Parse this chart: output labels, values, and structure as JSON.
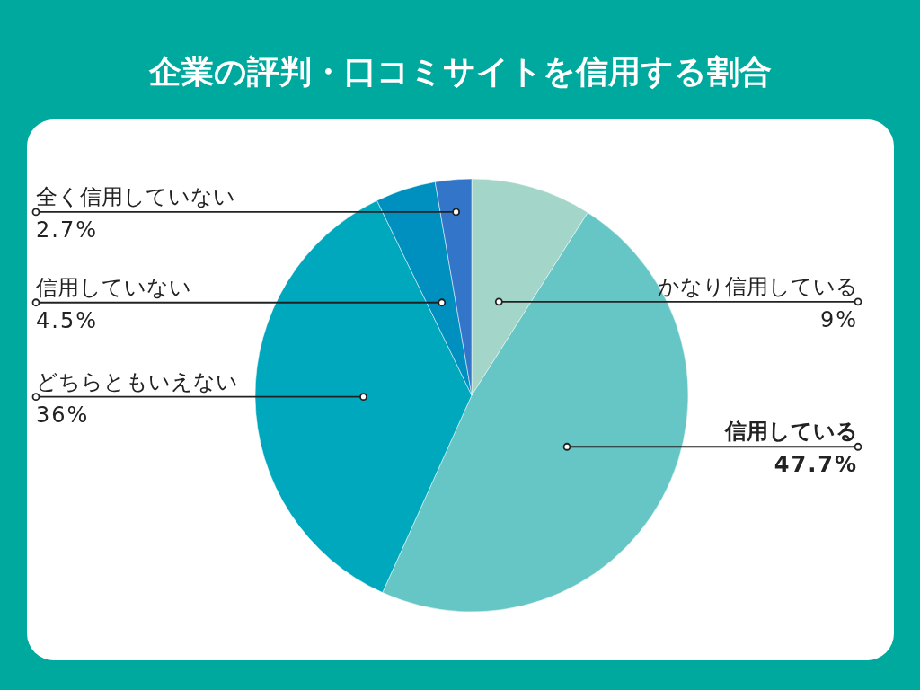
{
  "chart_data": {
    "type": "pie",
    "title": "企業の評判・口コミサイトを信用する割合",
    "categories": [
      "かなり信用している",
      "信用している",
      "どちらともいえない",
      "信用していない",
      "全く信用していない"
    ],
    "values": [
      9,
      47.7,
      36,
      4.5,
      2.7
    ],
    "colors": [
      "#a3d5c9",
      "#66c5c5",
      "#00a8bd",
      "#0090c0",
      "#3375c8"
    ],
    "value_labels": [
      "9%",
      "47.7%",
      "36%",
      "4.5%",
      "2.7%"
    ]
  }
}
